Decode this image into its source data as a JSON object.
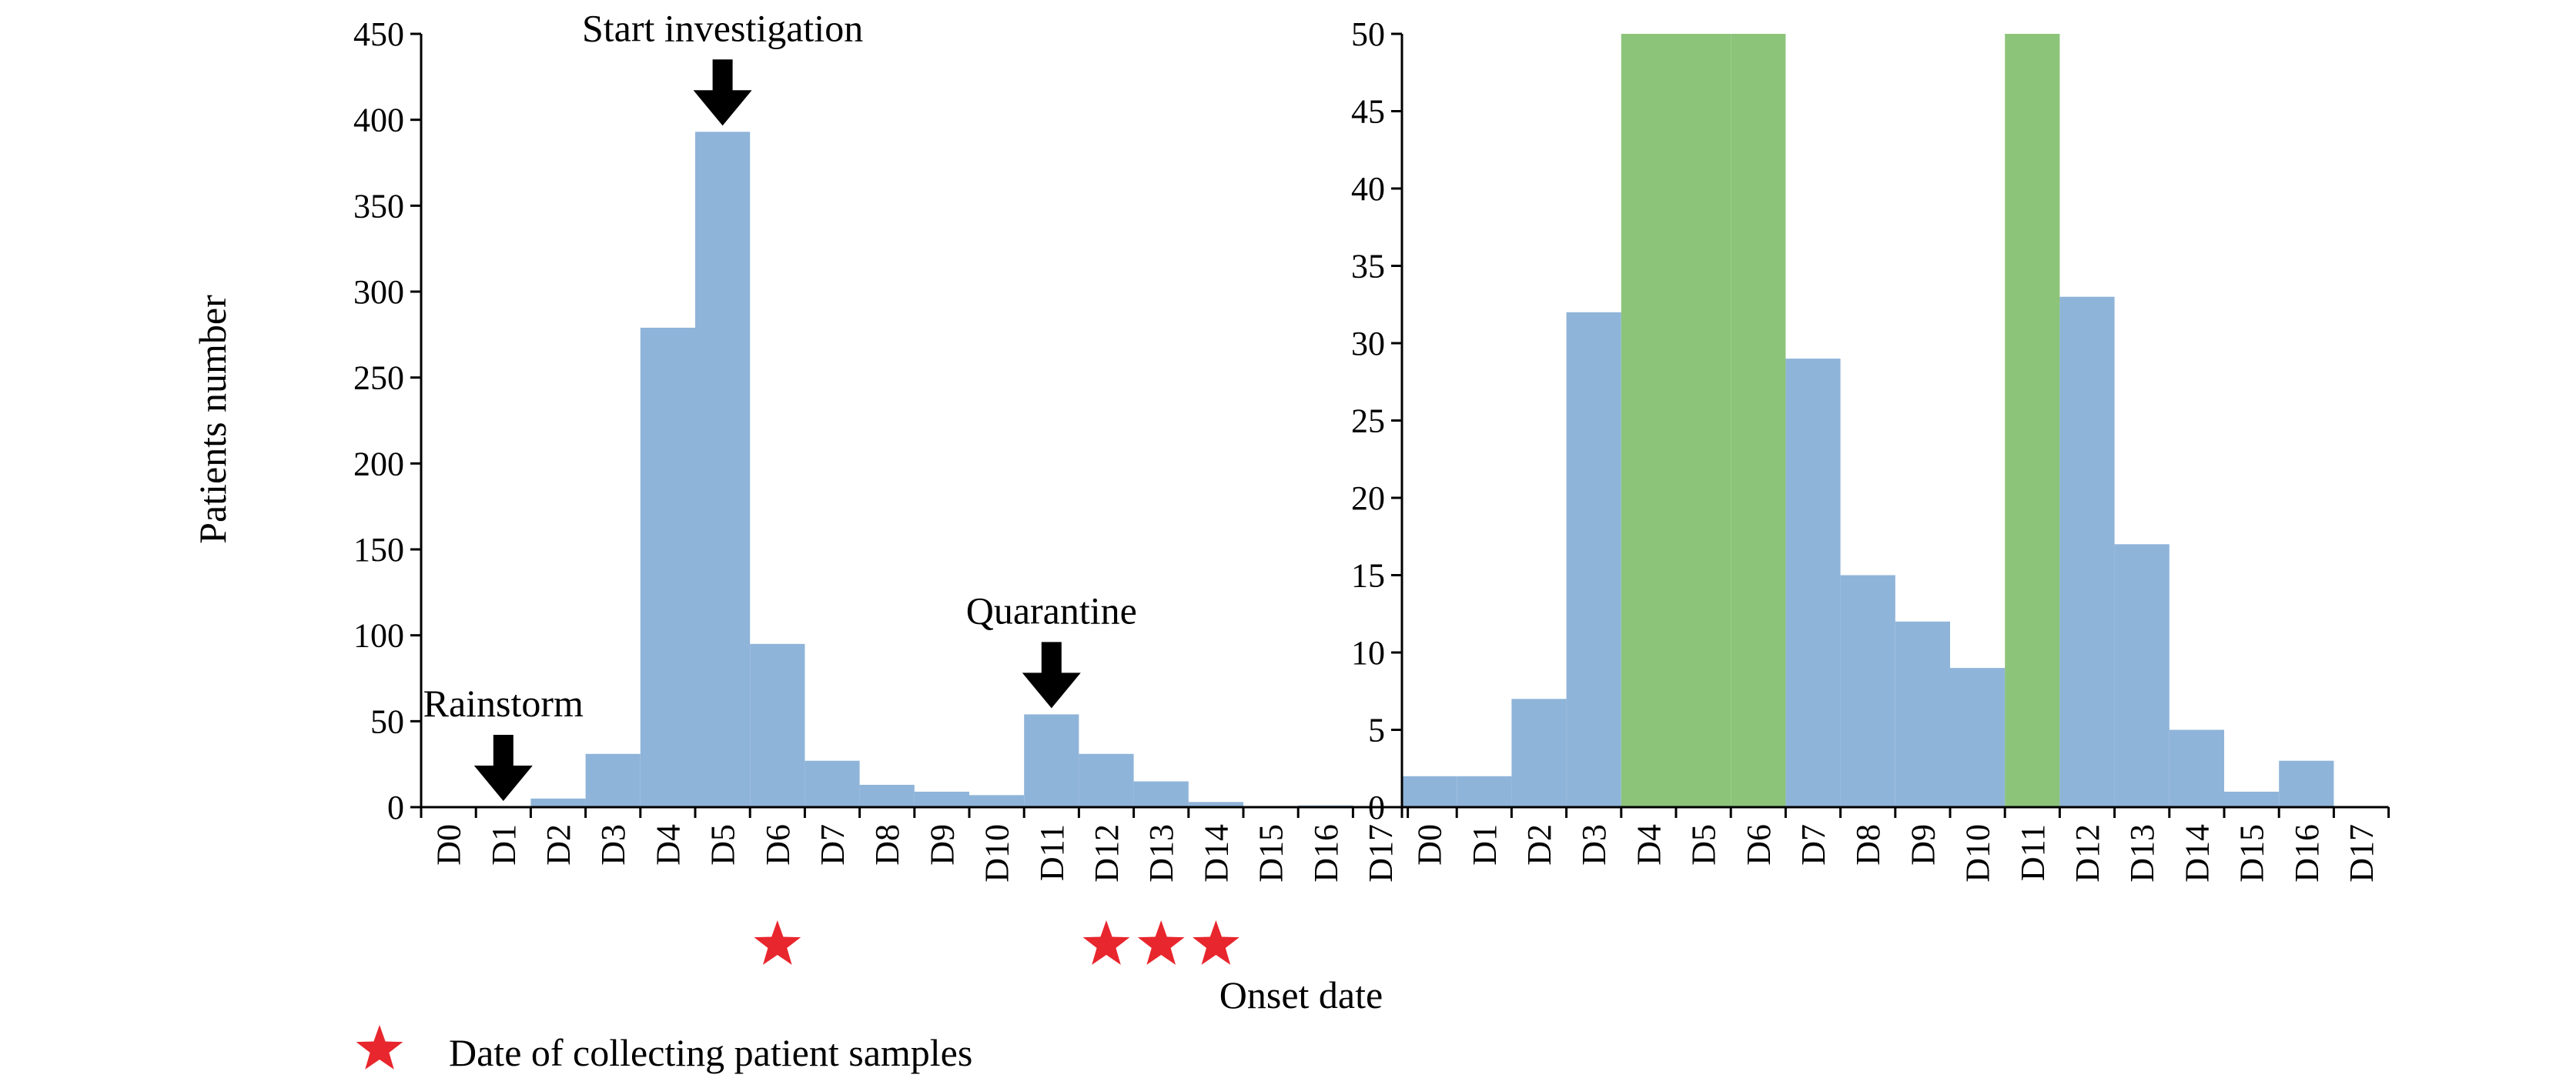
{
  "colors": {
    "bar_fill": "#8fb4d9",
    "highlight_fill": "#8cc47a",
    "star": "#e8262d",
    "arrow": "#000000",
    "axis": "#000000"
  },
  "chart_data": [
    {
      "type": "bar",
      "categories": [
        "D0",
        "D1",
        "D2",
        "D3",
        "D4",
        "D5",
        "D6",
        "D7",
        "D8",
        "D9",
        "D10",
        "D11",
        "D12",
        "D13",
        "D14",
        "D15",
        "D16",
        "D17"
      ],
      "values": [
        0,
        0,
        5,
        31,
        279,
        393,
        95,
        27,
        13,
        9,
        7,
        54,
        31,
        15,
        3,
        0,
        1,
        0
      ],
      "ylabel": "Patients number",
      "xlabel": "Onset date",
      "ylim": [
        0,
        450
      ],
      "yticks": [
        0,
        50,
        100,
        150,
        200,
        250,
        300,
        350,
        400,
        450
      ],
      "grid": false,
      "annotations": [
        {
          "text": "Rainstorm",
          "category": "D1",
          "arrow": "down"
        },
        {
          "text": "Start investigation",
          "category": "D5",
          "arrow": "down"
        },
        {
          "text": "Quarantine",
          "category": "D11",
          "arrow": "down"
        }
      ],
      "sample_dates": [
        "D6",
        "D12",
        "D13",
        "D14"
      ]
    },
    {
      "type": "bar",
      "categories": [
        "D0",
        "D1",
        "D2",
        "D3",
        "D4",
        "D5",
        "D6",
        "D7",
        "D8",
        "D9",
        "D10",
        "D11",
        "D12",
        "D13",
        "D14",
        "D15",
        "D16",
        "D17"
      ],
      "values": [
        2,
        2,
        7,
        32,
        50,
        50,
        50,
        29,
        15,
        12,
        9,
        50,
        33,
        17,
        5,
        1,
        3,
        0
      ],
      "highlighted": [
        "D4",
        "D5",
        "D6",
        "D11"
      ],
      "ylim": [
        0,
        50
      ],
      "yticks": [
        0,
        5,
        10,
        15,
        20,
        25,
        30,
        35,
        40,
        45,
        50
      ],
      "grid": false
    }
  ],
  "legend": {
    "items": [
      {
        "label": "Date of collecting patient samples",
        "marker": "star"
      }
    ]
  }
}
